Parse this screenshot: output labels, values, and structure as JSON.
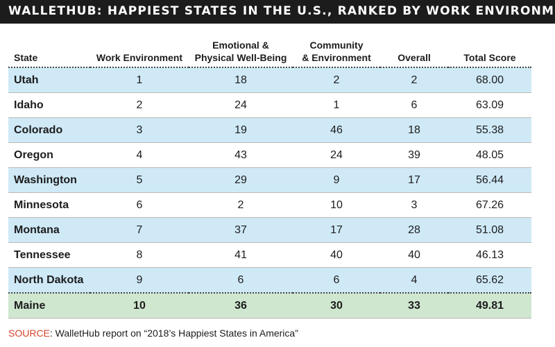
{
  "title": "WALLETHUB: HAPPIEST STATES IN THE U.S., RANKED BY WORK ENVIRONMENT",
  "source": {
    "label": "SOURCE",
    "text": ": WalletHub report on “2018’s Happiest States in America”"
  },
  "colors": {
    "title_bg": "#1c1c1c",
    "row_highlight": "#cfe9f7",
    "maine_row": "#cfe7cf",
    "source_label": "#d6442c"
  },
  "chart_data": {
    "type": "table",
    "columns": [
      "State",
      "Work Environment",
      "Emotional & Physical Well-Being",
      "Community & Environment",
      "Overall",
      "Total Score"
    ],
    "header_lines": [
      [
        "State"
      ],
      [
        "Work Environment"
      ],
      [
        "Emotional &",
        "Physical Well-Being"
      ],
      [
        "Community",
        "& Environment"
      ],
      [
        "Overall"
      ],
      [
        "Total Score"
      ]
    ],
    "rows": [
      [
        "Utah",
        "1",
        "18",
        "2",
        "2",
        "68.00"
      ],
      [
        "Idaho",
        "2",
        "24",
        "1",
        "6",
        "63.09"
      ],
      [
        "Colorado",
        "3",
        "19",
        "46",
        "18",
        "55.38"
      ],
      [
        "Oregon",
        "4",
        "43",
        "24",
        "39",
        "48.05"
      ],
      [
        "Washington",
        "5",
        "29",
        "9",
        "17",
        "56.44"
      ],
      [
        "Minnesota",
        "6",
        "2",
        "10",
        "3",
        "67.26"
      ],
      [
        "Montana",
        "7",
        "37",
        "17",
        "28",
        "51.08"
      ],
      [
        "Tennessee",
        "8",
        "41",
        "40",
        "40",
        "46.13"
      ],
      [
        "North Dakota",
        "9",
        "6",
        "6",
        "4",
        "65.62"
      ],
      [
        "Maine",
        "10",
        "36",
        "30",
        "33",
        "49.81"
      ]
    ],
    "highlight_row": "Maine"
  }
}
